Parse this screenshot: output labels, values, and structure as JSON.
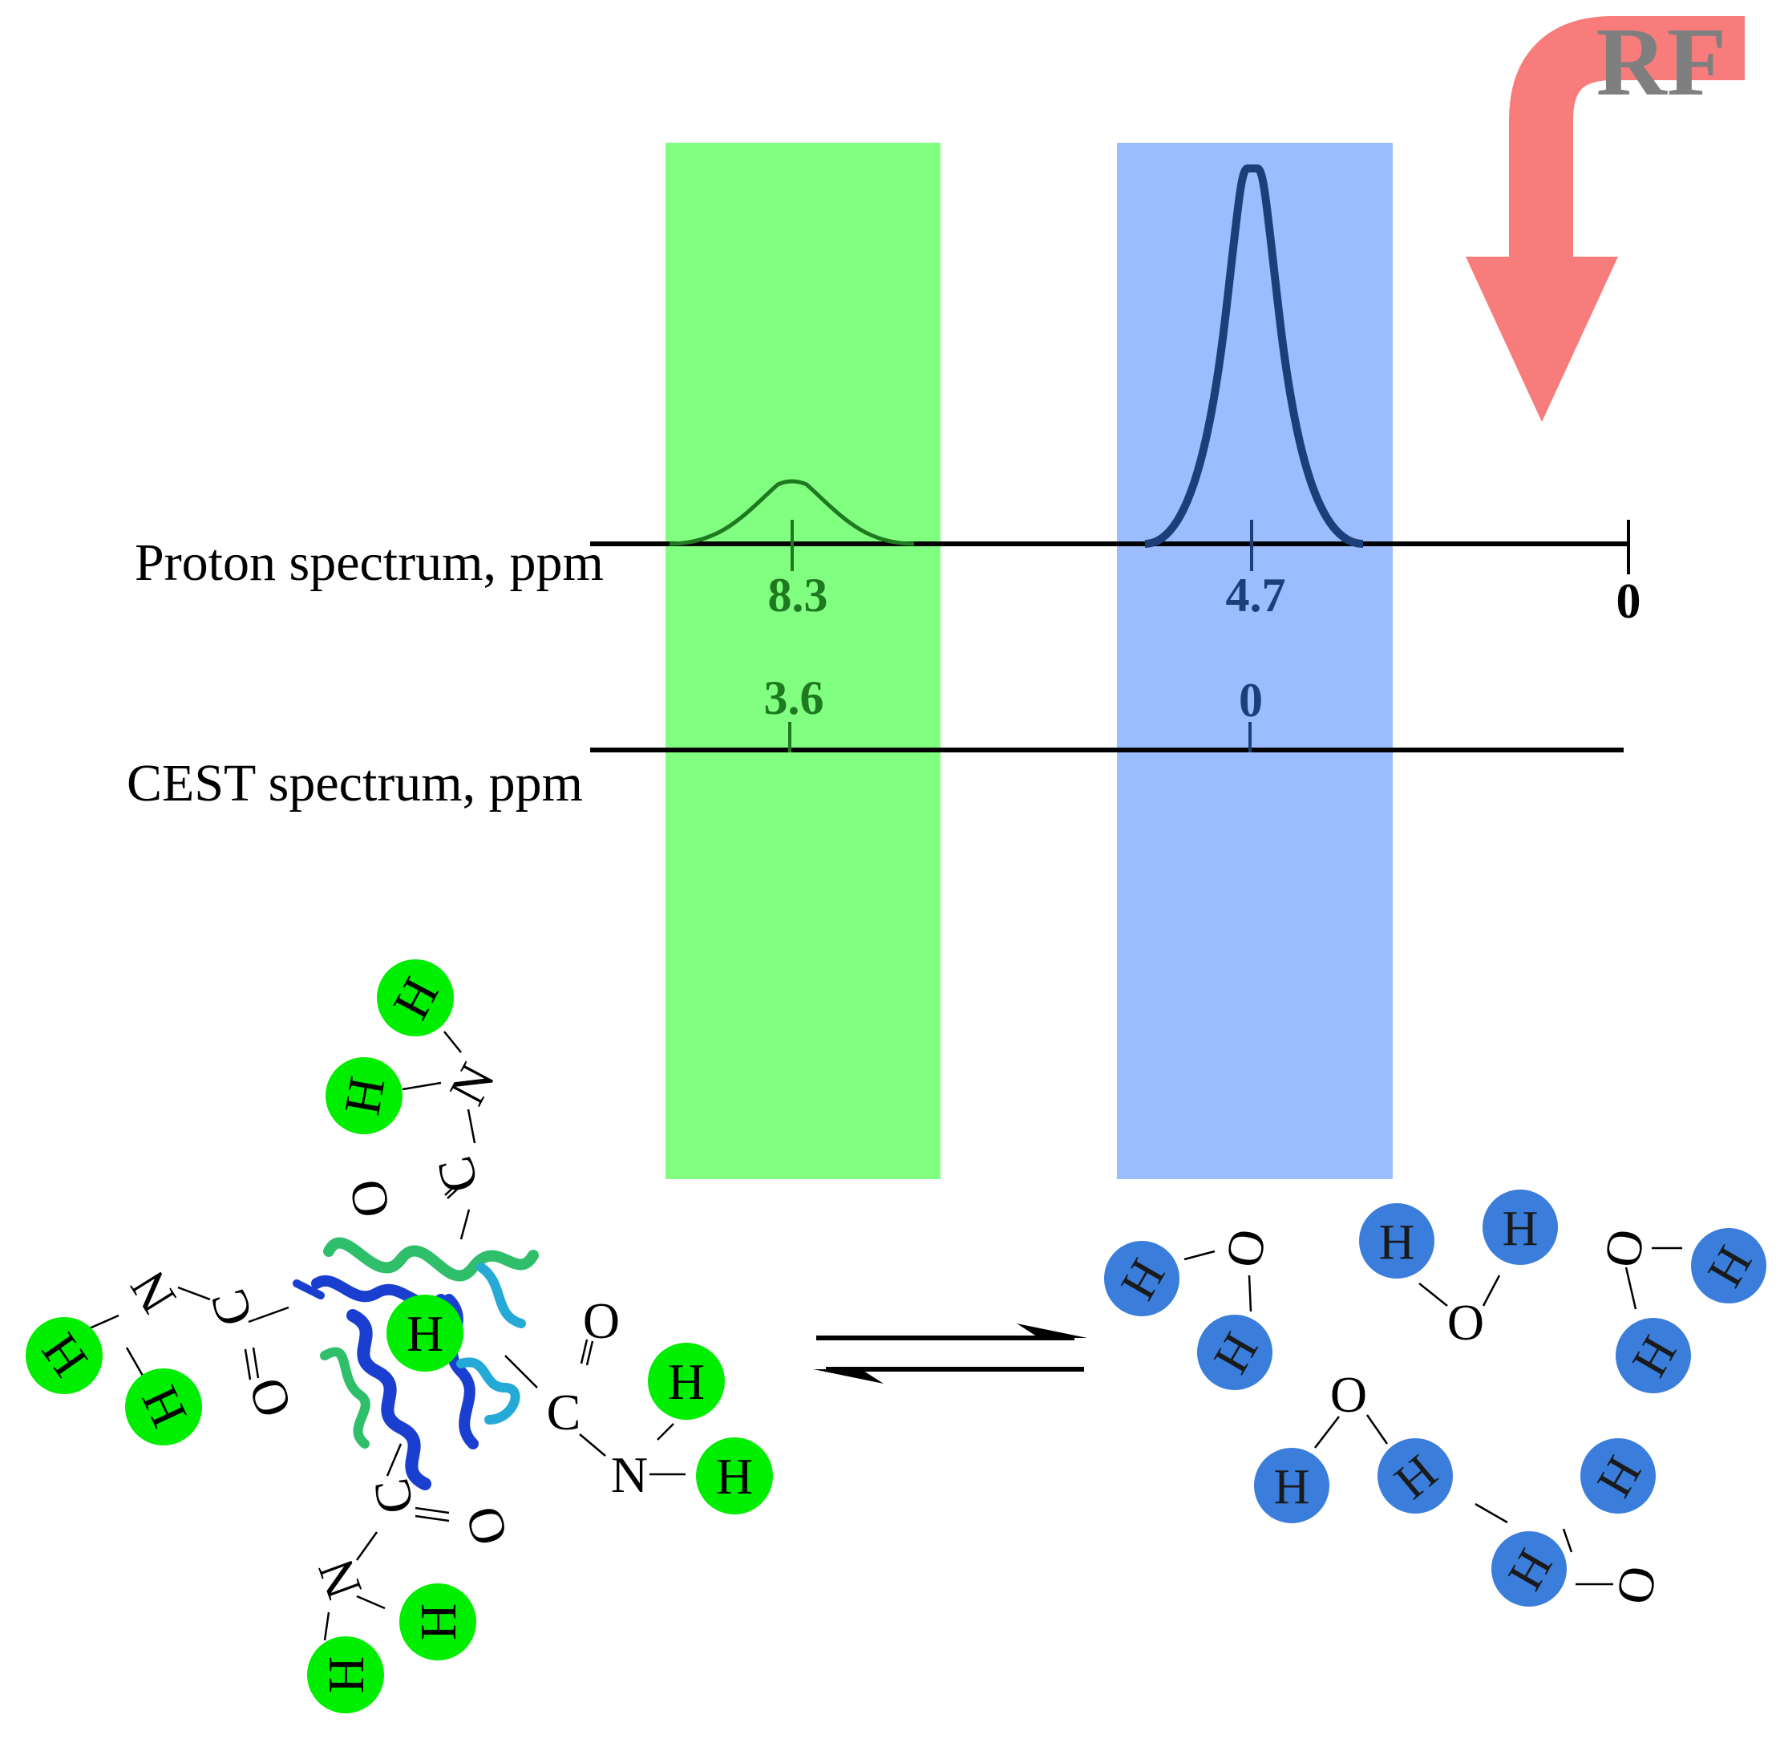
{
  "rf_label": "RF",
  "proton_axis": {
    "label": "Proton spectrum, ppm",
    "ticks": [
      "8.3",
      "4.7",
      "0"
    ]
  },
  "cest_axis": {
    "label": "CEST spectrum, ppm",
    "ticks": [
      "3.6",
      "0"
    ]
  },
  "atoms": {
    "hydrogen": "H",
    "oxygen": "O",
    "nitrogen": "N",
    "carbon": "C"
  },
  "colors": {
    "solute_band": "#80ff80",
    "water_band": "#9cbdfd",
    "solute_peak": "#1f7a1f",
    "water_peak": "#1c3f7a",
    "amide_h": "#00ee00",
    "water_h": "#3a7ddb",
    "rf_arrow": "#f87c7c",
    "protein_blue": "#1a3fd0",
    "protein_green": "#2fbf6a",
    "protein_cyan": "#25a9d6"
  }
}
